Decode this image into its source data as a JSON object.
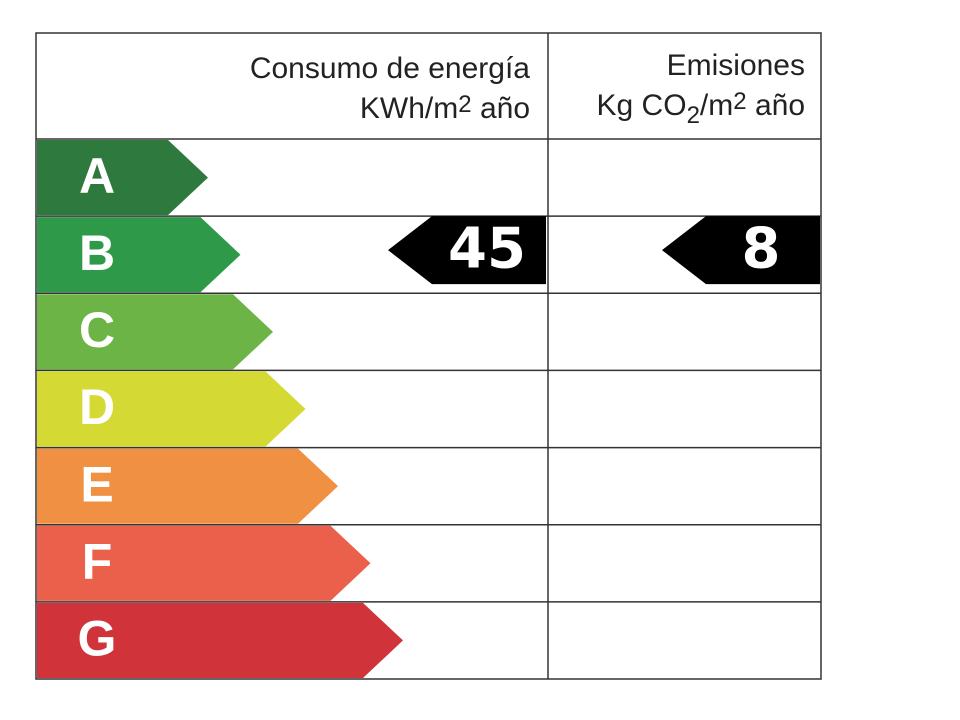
{
  "header": {
    "consumption": {
      "title": "Consumo de energía",
      "unit": [
        "KWh/m",
        "2",
        " año"
      ]
    },
    "emissions": {
      "title": "Emisiones",
      "unit": [
        "Kg CO",
        "2",
        "/m",
        "2",
        " año"
      ]
    }
  },
  "classes": [
    {
      "label": "A",
      "color": "#2e7a3e"
    },
    {
      "label": "B",
      "color": "#2e9a49"
    },
    {
      "label": "C",
      "color": "#6cb445"
    },
    {
      "label": "D",
      "color": "#d5d933"
    },
    {
      "label": "E",
      "color": "#f09042"
    },
    {
      "label": "F",
      "color": "#ea604b"
    },
    {
      "label": "G",
      "color": "#d1333a"
    }
  ],
  "ratings": {
    "consumption": {
      "value": 45,
      "class": "B"
    },
    "emissions": {
      "value": 8,
      "class": "B"
    }
  }
}
